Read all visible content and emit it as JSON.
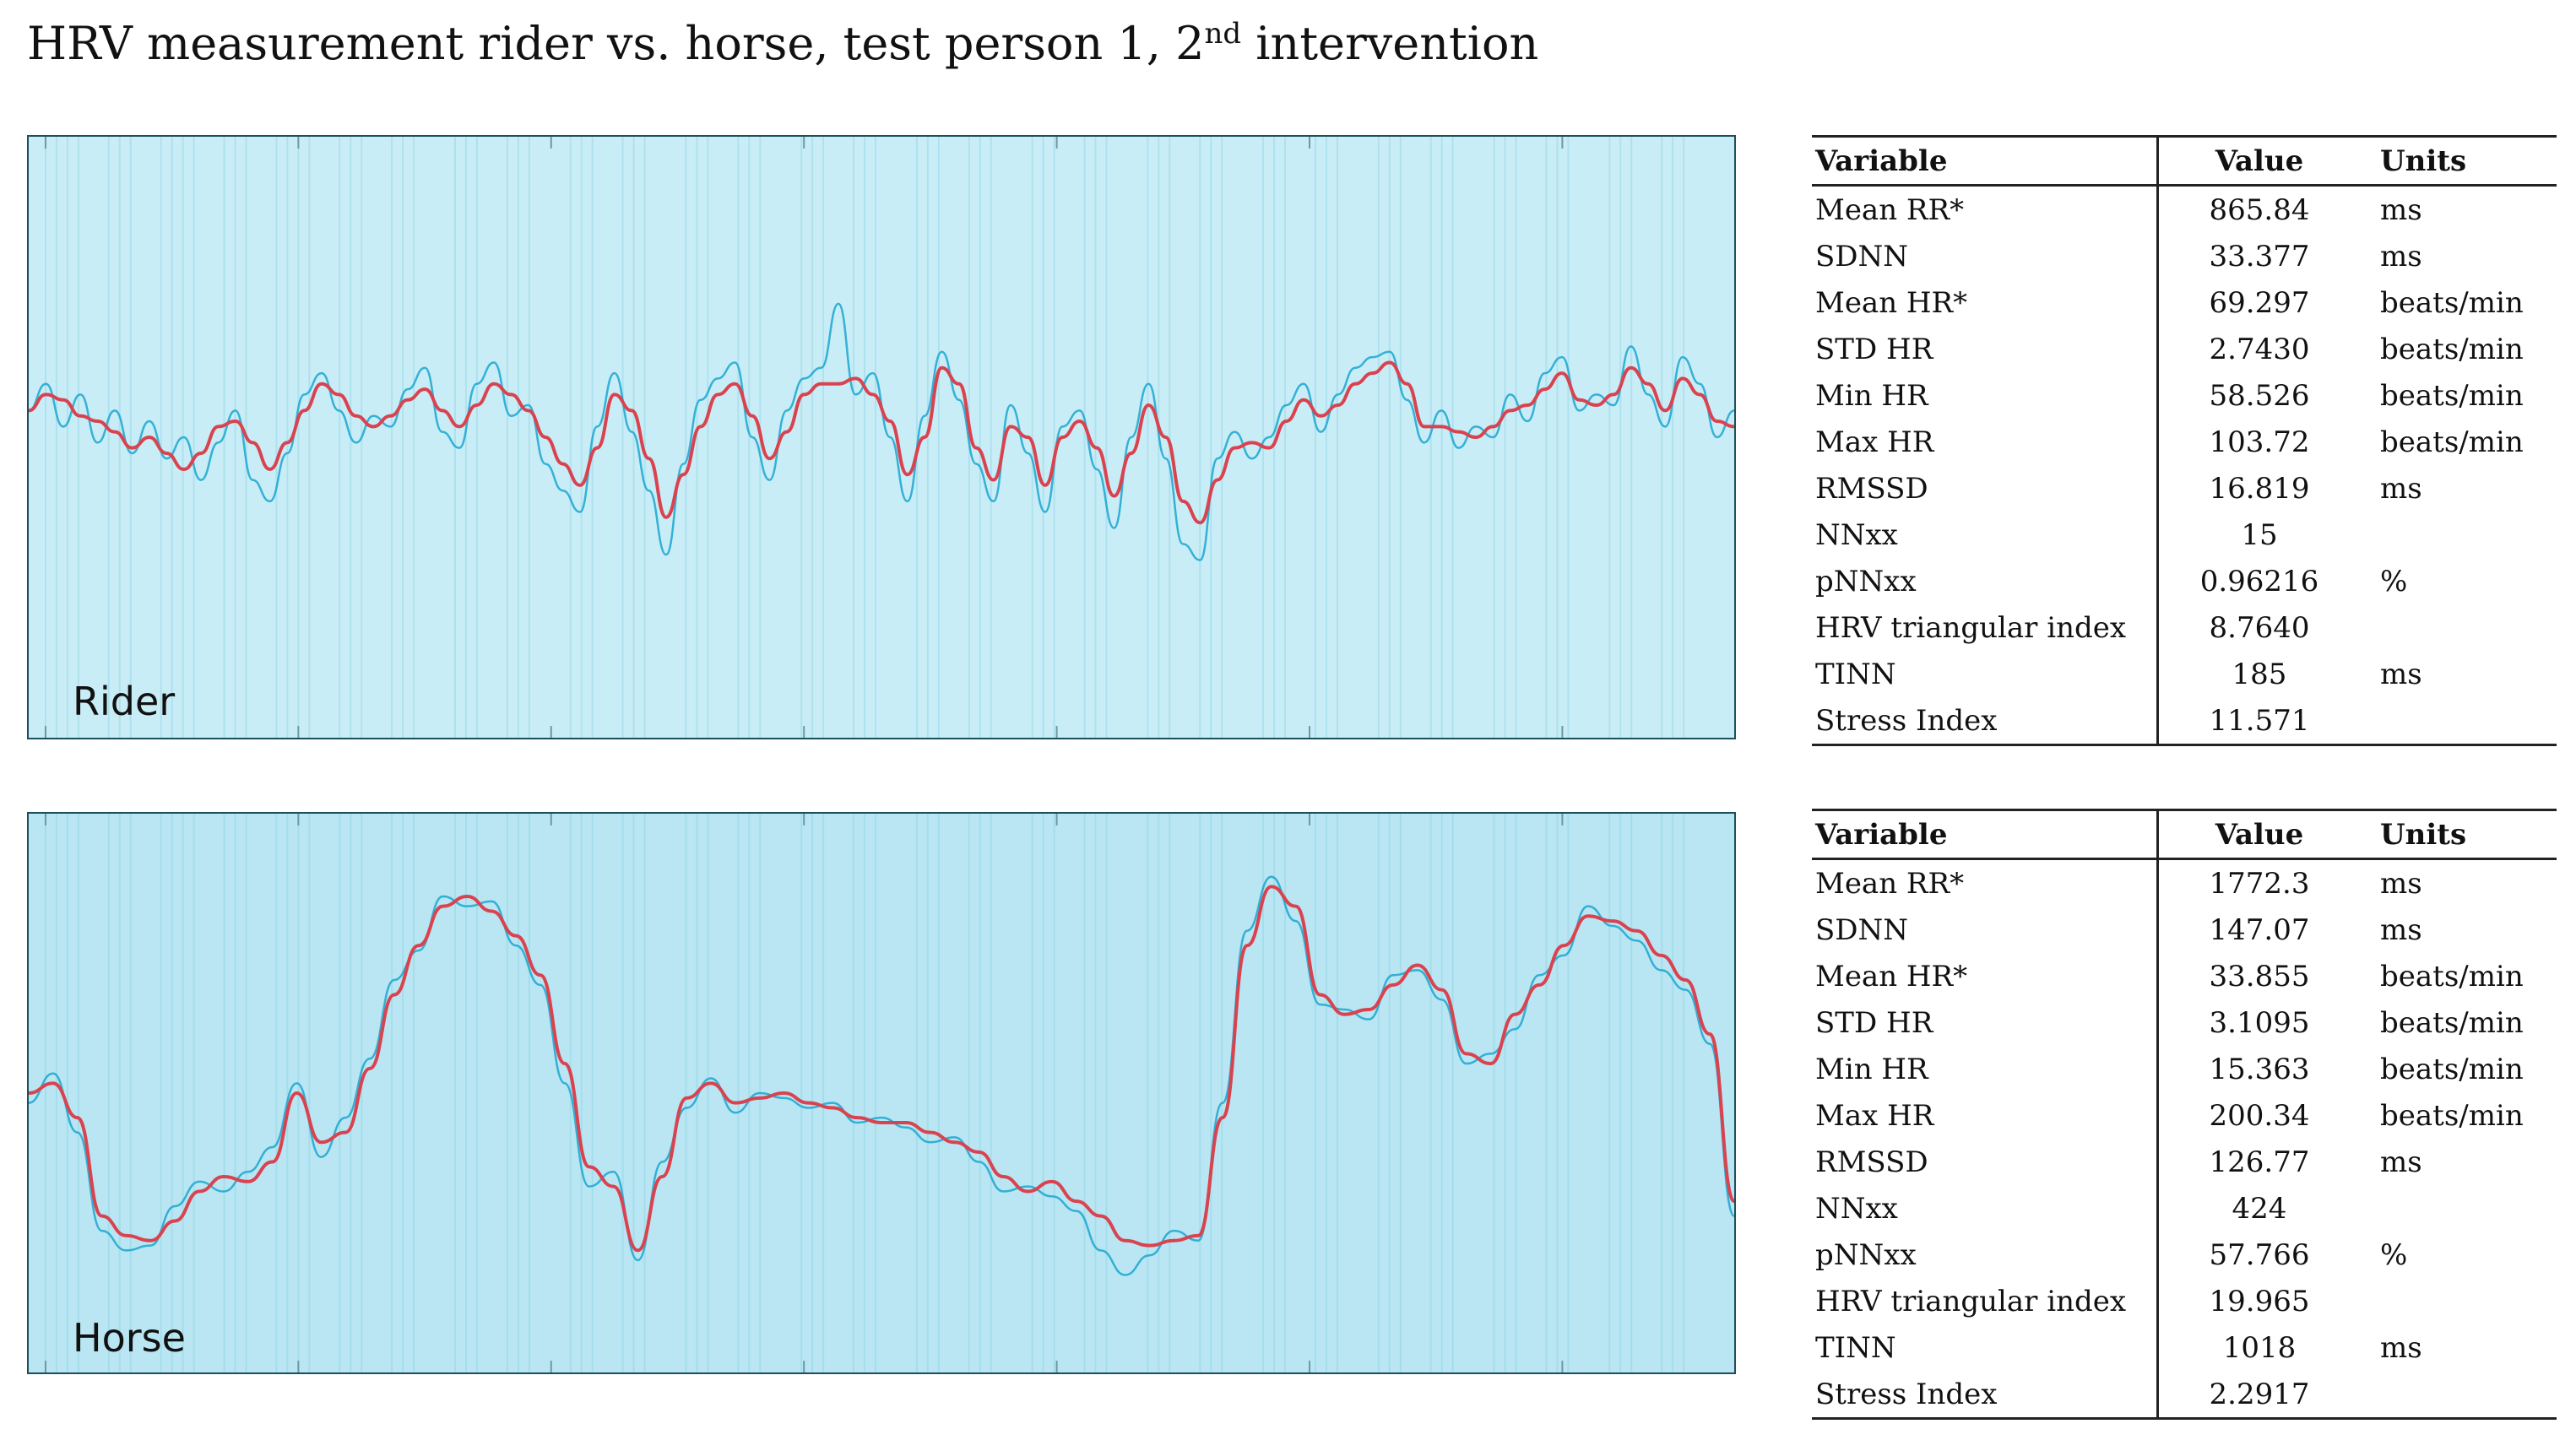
{
  "title": {
    "prefix": "HRV measurement rider vs. horse, test person 1, 2",
    "superscript": "nd",
    "suffix": " intervention"
  },
  "colors": {
    "panel_rider_bg": "#c9edf6",
    "panel_horse_bg": "#b9e6f2",
    "raw_signal": "#1aa6d0",
    "smoothed_signal": "#d9434f"
  },
  "chart_data": [
    {
      "type": "line",
      "name": "Rider",
      "label": "Rider",
      "grid": false,
      "ylim": [
        0,
        100
      ],
      "series": [
        {
          "name": "smoothed (red)",
          "values": [
            55,
            58,
            57,
            54,
            53,
            51,
            48,
            50,
            47,
            44,
            47,
            52,
            53,
            49,
            44,
            49,
            55,
            60,
            58,
            54,
            52,
            54,
            57,
            59,
            55,
            52,
            56,
            60,
            58,
            55,
            50,
            45,
            41,
            48,
            58,
            55,
            46,
            35,
            43,
            52,
            58,
            60,
            54,
            46,
            51,
            58,
            60,
            60,
            61,
            58,
            53,
            43,
            50,
            63,
            60,
            48,
            42,
            52,
            50,
            41,
            50,
            53,
            48,
            39,
            47,
            56,
            50,
            38,
            34,
            42,
            48,
            49,
            48,
            53,
            57,
            54,
            56,
            60,
            62,
            64,
            60,
            52,
            52,
            51,
            50,
            52,
            55,
            56,
            59,
            62,
            57,
            56,
            58,
            63,
            60,
            55,
            61,
            58,
            53,
            52
          ]
        },
        {
          "name": "raw (blue)",
          "values": [
            55,
            60,
            52,
            58,
            49,
            55,
            47,
            53,
            46,
            50,
            42,
            49,
            55,
            42,
            38,
            47,
            58,
            62,
            55,
            49,
            54,
            52,
            59,
            63,
            51,
            48,
            60,
            64,
            54,
            56,
            45,
            40,
            36,
            52,
            62,
            51,
            40,
            28,
            45,
            57,
            61,
            64,
            50,
            42,
            55,
            61,
            63,
            75,
            58,
            62,
            50,
            38,
            54,
            66,
            57,
            45,
            38,
            56,
            47,
            36,
            52,
            55,
            44,
            33,
            50,
            60,
            46,
            30,
            27,
            46,
            51,
            46,
            50,
            56,
            60,
            51,
            58,
            63,
            65,
            66,
            57,
            49,
            55,
            48,
            52,
            50,
            58,
            53,
            62,
            65,
            55,
            58,
            56,
            67,
            58,
            52,
            65,
            60,
            50,
            55
          ]
        }
      ]
    },
    {
      "type": "line",
      "name": "Horse",
      "label": "Horse",
      "grid": false,
      "ylim": [
        0,
        100
      ],
      "series": [
        {
          "name": "smoothed (red)",
          "values": [
            50,
            52,
            45,
            25,
            21,
            20,
            24,
            30,
            33,
            32,
            36,
            50,
            40,
            42,
            55,
            70,
            80,
            88,
            90,
            87,
            82,
            74,
            56,
            35,
            31,
            18,
            33,
            49,
            52,
            48,
            49,
            50,
            48,
            47,
            45,
            44,
            44,
            42,
            40,
            38,
            33,
            30,
            32,
            28,
            25,
            20,
            19,
            20,
            21,
            45,
            80,
            92,
            88,
            70,
            66,
            67,
            72,
            76,
            71,
            58,
            56,
            66,
            72,
            80,
            86,
            85,
            83,
            78,
            73,
            62,
            28
          ]
        },
        {
          "name": "raw (blue)",
          "values": [
            48,
            54,
            42,
            22,
            18,
            19,
            27,
            32,
            30,
            34,
            39,
            52,
            37,
            45,
            57,
            73,
            79,
            90,
            88,
            89,
            80,
            72,
            52,
            31,
            34,
            16,
            36,
            47,
            53,
            46,
            50,
            49,
            47,
            48,
            44,
            45,
            43,
            40,
            41,
            36,
            30,
            31,
            29,
            26,
            18,
            13,
            17,
            22,
            20,
            48,
            83,
            94,
            85,
            68,
            67,
            65,
            74,
            75,
            69,
            56,
            58,
            63,
            74,
            78,
            88,
            84,
            81,
            75,
            71,
            60,
            25
          ]
        }
      ]
    }
  ],
  "tables": {
    "rider": {
      "headers": {
        "variable": "Variable",
        "value": "Value",
        "units": "Units"
      },
      "rows": [
        {
          "variable": "Mean RR*",
          "value": "865.84",
          "units": "ms"
        },
        {
          "variable": "SDNN",
          "value": "33.377",
          "units": "ms"
        },
        {
          "variable": "Mean HR*",
          "value": "69.297",
          "units": "beats/min"
        },
        {
          "variable": "STD HR",
          "value": "2.7430",
          "units": "beats/min"
        },
        {
          "variable": "Min HR",
          "value": "58.526",
          "units": "beats/min"
        },
        {
          "variable": "Max HR",
          "value": "103.72",
          "units": "beats/min"
        },
        {
          "variable": "RMSSD",
          "value": "16.819",
          "units": "ms"
        },
        {
          "variable": "NNxx",
          "value": "15",
          "units": ""
        },
        {
          "variable": "pNNxx",
          "value": "0.96216",
          "units": "%"
        },
        {
          "variable": "HRV triangular index",
          "value": "8.7640",
          "units": ""
        },
        {
          "variable": "TINN",
          "value": "185",
          "units": "ms"
        },
        {
          "variable": "Stress Index",
          "value": "11.571",
          "units": ""
        }
      ]
    },
    "horse": {
      "headers": {
        "variable": "Variable",
        "value": "Value",
        "units": "Units"
      },
      "rows": [
        {
          "variable": "Mean RR*",
          "value": "1772.3",
          "units": "ms"
        },
        {
          "variable": "SDNN",
          "value": "147.07",
          "units": "ms"
        },
        {
          "variable": "Mean HR*",
          "value": "33.855",
          "units": "beats/min"
        },
        {
          "variable": "STD HR",
          "value": "3.1095",
          "units": "beats/min"
        },
        {
          "variable": "Min HR",
          "value": "15.363",
          "units": "beats/min"
        },
        {
          "variable": "Max HR",
          "value": "200.34",
          "units": "beats/min"
        },
        {
          "variable": "RMSSD",
          "value": "126.77",
          "units": "ms"
        },
        {
          "variable": "NNxx",
          "value": "424",
          "units": ""
        },
        {
          "variable": "pNNxx",
          "value": "57.766",
          "units": "%"
        },
        {
          "variable": "HRV triangular index",
          "value": "19.965",
          "units": ""
        },
        {
          "variable": "TINN",
          "value": "1018",
          "units": "ms"
        },
        {
          "variable": "Stress Index",
          "value": "2.2917",
          "units": ""
        }
      ]
    }
  }
}
